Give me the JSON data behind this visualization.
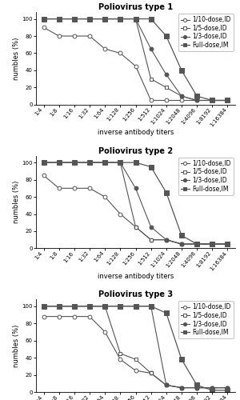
{
  "x_labels": [
    "1:4",
    "1:8",
    "1:16",
    "1:32",
    "1:64",
    "1:128",
    "1:256",
    "1:512",
    "1:1024",
    "1:2048",
    "1:4096",
    "1:8192",
    "1:16384"
  ],
  "titles": [
    "Poliovirus type 1",
    "Poliovirus type 2",
    "Poliovirus type 3"
  ],
  "xlabel": "inverse antibody titers",
  "ylabel": "numbles (%)",
  "legend_labels": [
    "1/10-dose,ID",
    "1/5-dose,ID",
    "1/3-dose,ID",
    "Full-dose,IM"
  ],
  "type1": {
    "dose_1_10": [
      90,
      80,
      80,
      80,
      65,
      60,
      45,
      5,
      5,
      5,
      5,
      5,
      5
    ],
    "dose_1_5": [
      100,
      100,
      100,
      100,
      100,
      100,
      100,
      30,
      20,
      10,
      5,
      5,
      5
    ],
    "dose_1_3": [
      100,
      100,
      100,
      100,
      100,
      100,
      100,
      65,
      35,
      10,
      5,
      5,
      5
    ],
    "full": [
      100,
      100,
      100,
      100,
      100,
      100,
      100,
      100,
      80,
      40,
      10,
      5,
      5
    ]
  },
  "type2": {
    "dose_1_10": [
      85,
      70,
      70,
      70,
      60,
      40,
      25,
      10,
      10,
      5,
      5,
      5,
      5
    ],
    "dose_1_5": [
      100,
      100,
      100,
      100,
      100,
      100,
      25,
      10,
      10,
      5,
      5,
      5,
      5
    ],
    "dose_1_3": [
      100,
      100,
      100,
      100,
      100,
      100,
      70,
      25,
      10,
      5,
      5,
      5,
      5
    ],
    "full": [
      100,
      100,
      100,
      100,
      100,
      100,
      100,
      95,
      65,
      15,
      5,
      5,
      5
    ]
  },
  "type3": {
    "dose_1_10": [
      88,
      88,
      88,
      88,
      70,
      38,
      25,
      22,
      8,
      5,
      5,
      5,
      5
    ],
    "dose_1_5": [
      100,
      100,
      100,
      100,
      100,
      45,
      38,
      22,
      8,
      5,
      5,
      5,
      5
    ],
    "dose_1_3": [
      100,
      100,
      100,
      100,
      100,
      100,
      100,
      100,
      8,
      5,
      5,
      5,
      5
    ],
    "full": [
      100,
      100,
      100,
      100,
      100,
      100,
      100,
      100,
      92,
      38,
      8,
      2,
      2
    ]
  },
  "line_color": "#555555",
  "ylim": [
    0,
    108
  ],
  "background": "#ffffff",
  "title_fontsize": 7,
  "label_fontsize": 6,
  "tick_fontsize": 5,
  "legend_fontsize": 5.5
}
